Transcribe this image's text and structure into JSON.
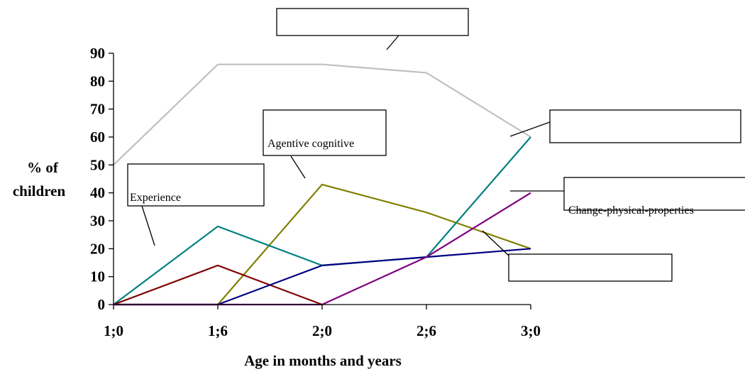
{
  "chart_data": {
    "type": "line",
    "x": [
      "1;0",
      "1;6",
      "2;0",
      "2;6",
      "3;0"
    ],
    "ylabel_lines": [
      "% of",
      "children"
    ],
    "xlabel": "Age in months and years",
    "ylim": [
      0,
      90
    ],
    "yticks": [
      0,
      10,
      20,
      30,
      40,
      50,
      60,
      70,
      80,
      90
    ],
    "grid": false,
    "series": [
      {
        "color": "#c0c0c0",
        "values": [
          50,
          86,
          86,
          83,
          60
        ]
      },
      {
        "color": "#808000",
        "values": [
          0,
          0,
          43,
          33,
          20
        ]
      },
      {
        "color": "#008080",
        "values": [
          0,
          28,
          14,
          17,
          60
        ]
      },
      {
        "color": "#800000",
        "values": [
          0,
          14,
          0,
          null,
          null
        ]
      },
      {
        "color": "#000080",
        "values": [
          0,
          0,
          14,
          17,
          20
        ]
      },
      {
        "color": "#800080",
        "values": [
          0,
          0,
          0,
          17,
          40
        ]
      }
    ],
    "annotations": [
      {
        "text": ""
      },
      {
        "text": "Agentive cognitive"
      },
      {
        "text": "Experience"
      },
      {
        "text": ""
      },
      {
        "text": "Change-physical-properties"
      },
      {
        "text": ""
      }
    ]
  }
}
